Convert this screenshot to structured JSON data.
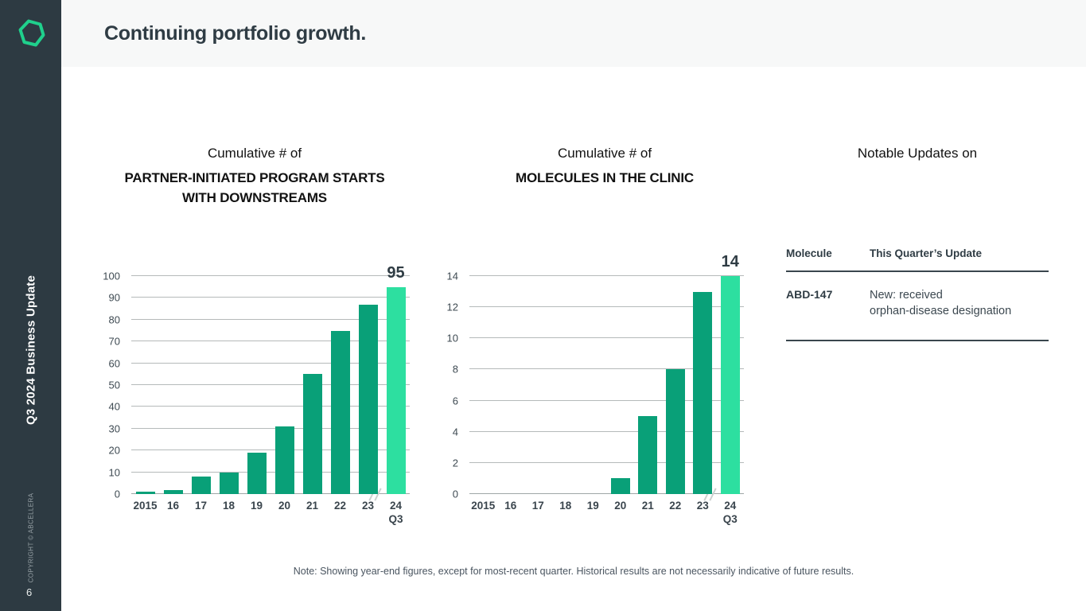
{
  "slide": {
    "title": "Continuing portfolio growth.",
    "sidebar_label": "Q3 2024 Business Update",
    "copyright": "COPYRIGHT © ABCELLERA",
    "page_number": "6",
    "note": "Note: Showing year-end figures, except for most-recent quarter. Historical results are not necessarily indicative of future results."
  },
  "colors": {
    "sidebar_bg": "#2d3a42",
    "header_bg": "#f7f8f8",
    "bar_green": "#09a078",
    "bar_highlight_green": "#2ddfa0",
    "logo_green": "#1fd08c",
    "gridline_gray": "#b5baba"
  },
  "chart_data": [
    {
      "type": "bar",
      "title_prefix": "Cumulative # of",
      "title_line1": "PARTNER-INITIATED PROGRAM STARTS",
      "title_line2": "WITH DOWNSTREAMS",
      "categories": [
        "2015",
        "16",
        "17",
        "18",
        "19",
        "20",
        "21",
        "22",
        "23",
        "24"
      ],
      "last_sub": "Q3",
      "values": [
        1,
        2,
        8,
        10,
        19,
        31,
        55,
        75,
        87,
        95
      ],
      "highlight_index": 9,
      "highlight_label": "95",
      "ylim": [
        0,
        100
      ],
      "yticks": [
        0,
        10,
        20,
        30,
        40,
        50,
        60,
        70,
        80,
        90,
        100
      ],
      "axis_break_before_last": true,
      "legend": "none",
      "grid": "horizontal"
    },
    {
      "type": "bar",
      "title_prefix": "Cumulative # of",
      "title_line1": "MOLECULES IN THE CLINIC",
      "title_line2": "",
      "categories": [
        "2015",
        "16",
        "17",
        "18",
        "19",
        "20",
        "21",
        "22",
        "23",
        "24"
      ],
      "last_sub": "Q3",
      "values": [
        0,
        0,
        0,
        0,
        0,
        1,
        5,
        8,
        13,
        14
      ],
      "highlight_index": 9,
      "highlight_label": "14",
      "ylim": [
        0,
        14
      ],
      "yticks": [
        0,
        2,
        4,
        6,
        8,
        10,
        12,
        14
      ],
      "axis_break_before_last": true,
      "legend": "none",
      "grid": "horizontal"
    }
  ],
  "updates_table": {
    "title": "Notable Updates on",
    "columns": {
      "molecule": "Molecule",
      "update": "This Quarter’s Update"
    },
    "rows": [
      {
        "molecule": "ABD-147",
        "update_line1": "New: received",
        "update_line2": "orphan-disease designation"
      }
    ]
  }
}
